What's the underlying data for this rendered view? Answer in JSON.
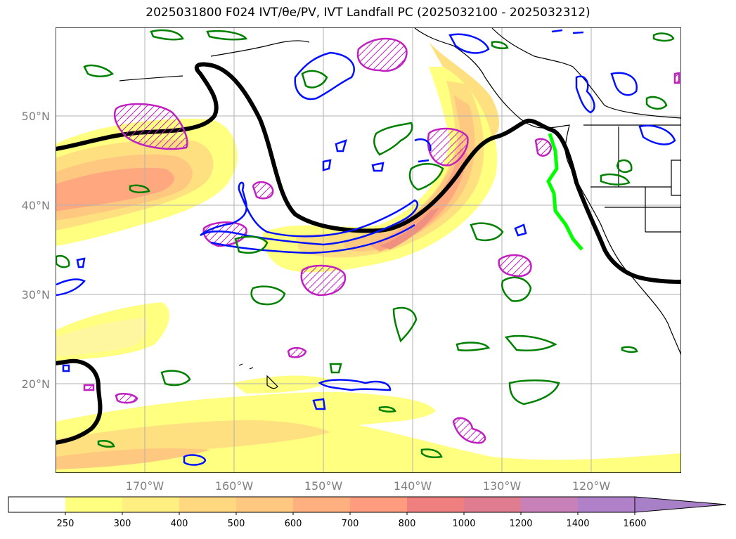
{
  "title": "2025031800 F024 IVT/θe/PV, IVT Landfall PC (2025032100 - 2025032312)",
  "map": {
    "lat_labels": [
      "50°N",
      "40°N",
      "30°N",
      "20°N"
    ],
    "lon_labels": [
      "170°W",
      "160°W",
      "150°W",
      "140°W",
      "130°W",
      "120°W"
    ]
  },
  "colorbar": {
    "ticks": [
      "250",
      "300",
      "400",
      "500",
      "600",
      "700",
      "800",
      "1000",
      "1200",
      "1400",
      "1600"
    ],
    "colors": [
      "#ffffff",
      "#ffff80",
      "#ffef80",
      "#ffd880",
      "#ffc880",
      "#ffb080",
      "#ff9c80",
      "#f08080",
      "#e07c90",
      "#c880b8",
      "#b080c8",
      "#a880c8"
    ]
  }
}
